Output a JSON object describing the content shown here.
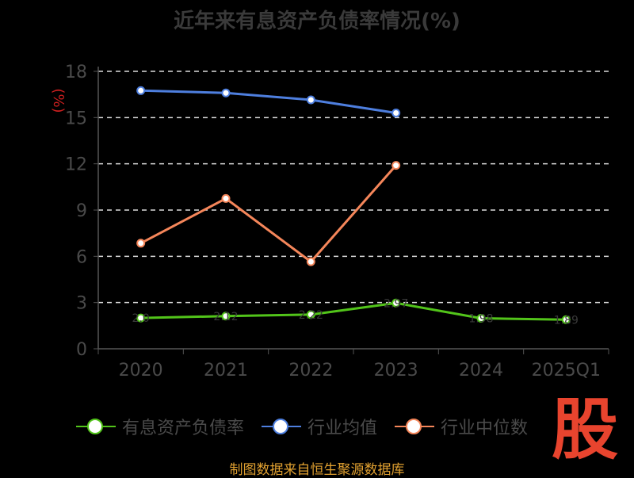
{
  "chart_data": {
    "type": "line",
    "title": "近年来有息资产负债率情况(%)",
    "ylabel": "(%)",
    "categories": [
      "2020",
      "2021",
      "2022",
      "2023",
      "2024",
      "2025Q1"
    ],
    "ylim": [
      0,
      18
    ],
    "yticks": [
      0,
      3,
      6,
      9,
      12,
      15,
      18
    ],
    "grid": true,
    "legend_position": "bottom",
    "series": [
      {
        "name": "有息资产负债率",
        "color": "#52c41a",
        "values": [
          2.0,
          2.12,
          2.22,
          2.97,
          1.98,
          1.89
        ],
        "labels": [
          "2.0",
          "2.12",
          "2.22",
          "2.97",
          "1.98",
          "1.89"
        ]
      },
      {
        "name": "行业均值",
        "color": "#4e7fdf",
        "values": [
          16.75,
          16.6,
          16.15,
          15.3,
          null,
          null
        ]
      },
      {
        "name": "行业中位数",
        "color": "#f5865a",
        "values": [
          6.85,
          9.75,
          5.65,
          11.9,
          null,
          null
        ]
      }
    ]
  },
  "logo_text": "股",
  "source": "制图数据来自恒生聚源数据库"
}
